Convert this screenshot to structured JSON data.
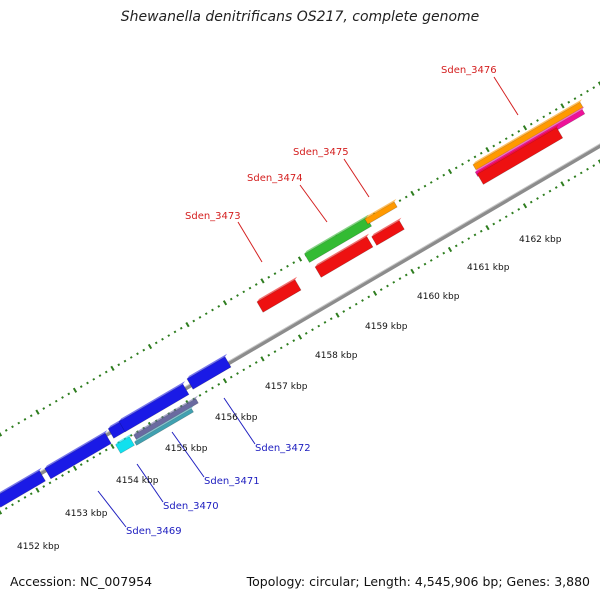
{
  "title": "Shewanella denitrificans OS217, complete genome",
  "footer": {
    "accession": "Accession: NC_007954",
    "stats": "Topology: circular; Length: 4,545,906 bp; Genes: 3,880"
  },
  "ticks": [
    {
      "label": "4152 kbp"
    },
    {
      "label": "4153 kbp"
    },
    {
      "label": "4154 kbp"
    },
    {
      "label": "4155 kbp"
    },
    {
      "label": "4156 kbp"
    },
    {
      "label": "4157 kbp"
    },
    {
      "label": "4158 kbp"
    },
    {
      "label": "4159 kbp"
    },
    {
      "label": "4160 kbp"
    },
    {
      "label": "4161 kbp"
    },
    {
      "label": "4162 kbp"
    }
  ],
  "gene_labels": {
    "plus": [
      "Sden_3473",
      "Sden_3474",
      "Sden_3475",
      "Sden_3476"
    ],
    "minus": [
      "Sden_3469",
      "Sden_3470",
      "Sden_3471",
      "Sden_3472"
    ]
  },
  "colors": {
    "backbone": "#8c8c8c",
    "tick_green": "#2e7d1f",
    "plus_label": "#d42020",
    "minus_label": "#2020c0",
    "red": "#ee1111",
    "blue": "#1a1ae6",
    "green": "#33bb33",
    "orange": "#ff9900",
    "magenta": "#ee1199",
    "cyan": "#11e0ee",
    "slate": "#6a6aa0",
    "teal": "#40a0b0"
  }
}
